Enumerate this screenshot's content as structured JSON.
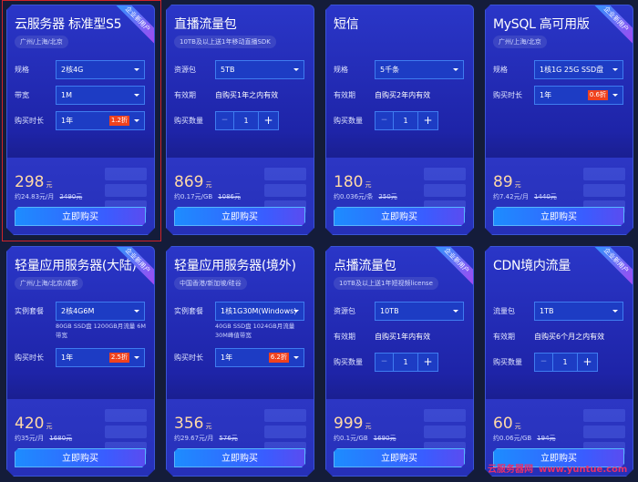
{
  "colors": {
    "accent": "#1d8cff",
    "badge": "#f0421e",
    "price": "#ffd9a8",
    "selection": "#d0242a"
  },
  "cards": [
    {
      "title": "云服务器 标准型S5",
      "tag": "广州/上海/北京",
      "ribbon": "企业新用户",
      "rows": [
        {
          "type": "select",
          "label": "规格",
          "value": "2核4G"
        },
        {
          "type": "select",
          "label": "带宽",
          "value": "1M"
        },
        {
          "type": "select",
          "label": "购买时长",
          "value": "1年",
          "badge": "1.2折"
        }
      ],
      "price": "298",
      "unit": "元",
      "per": "约24.83元/月",
      "original": "2490元",
      "button": "立即购买",
      "selected": true
    },
    {
      "title": "直播流量包",
      "tag": "10TB及以上送1年移动直播SDK",
      "rows": [
        {
          "type": "select",
          "label": "资源包",
          "value": "5TB"
        },
        {
          "type": "text",
          "label": "有效期",
          "value": "自购买1年之内有效"
        },
        {
          "type": "stepper",
          "label": "购买数量",
          "value": "1"
        }
      ],
      "price": "869",
      "unit": "元",
      "per": "约0.17元/GB",
      "original": "1086元",
      "button": "立即购买"
    },
    {
      "title": "短信",
      "rows": [
        {
          "type": "select",
          "label": "规格",
          "value": "5千条"
        },
        {
          "type": "text",
          "label": "有效期",
          "value": "自购买2年内有效"
        },
        {
          "type": "stepper",
          "label": "购买数量",
          "value": "1"
        }
      ],
      "price": "180",
      "unit": "元",
      "per": "约0.036元/条",
      "original": "250元",
      "button": "立即购买"
    },
    {
      "title": "MySQL 高可用版",
      "tag": "广州/上海/北京",
      "ribbon": "企业新用户",
      "rows": [
        {
          "type": "select",
          "label": "规格",
          "value": "1核1G 25G SSD盘"
        },
        {
          "type": "select",
          "label": "购买时长",
          "value": "1年",
          "badge": "0.6折"
        }
      ],
      "price": "89",
      "unit": "元",
      "per": "约7.42元/月",
      "original": "1440元",
      "button": "立即购买"
    },
    {
      "title": "轻量应用服务器(大陆)",
      "tag": "广州/上海/北京/成都",
      "ribbon": "企业新用户",
      "rows": [
        {
          "type": "select",
          "label": "实例套餐",
          "value": "2核4G6M",
          "desc": "80GB SSD盘 1200GB月流量 6M带宽"
        },
        {
          "type": "select",
          "label": "购买时长",
          "value": "1年",
          "badge": "2.5折"
        }
      ],
      "price": "420",
      "unit": "元",
      "per": "约35元/月",
      "original": "1680元",
      "button": "立即购买"
    },
    {
      "title": "轻量应用服务器(境外)",
      "tag": "中国香港/新加坡/硅谷",
      "rows": [
        {
          "type": "select",
          "label": "实例套餐",
          "value": "1核1G30M(Windows)",
          "desc": "40GB SSD盘 1024GB月流量 30M峰值带宽"
        },
        {
          "type": "select",
          "label": "购买时长",
          "value": "1年",
          "badge": "6.2折"
        }
      ],
      "price": "356",
      "unit": "元",
      "per": "约29.67元/月",
      "original": "576元",
      "button": "立即购买"
    },
    {
      "title": "点播流量包",
      "tag": "10TB及以上送1年短视频license",
      "ribbon": "企业新用户",
      "rows": [
        {
          "type": "select",
          "label": "资源包",
          "value": "10TB"
        },
        {
          "type": "text",
          "label": "有效期",
          "value": "自购买1年内有效"
        },
        {
          "type": "stepper",
          "label": "购买数量",
          "value": "1"
        }
      ],
      "price": "999",
      "unit": "元",
      "per": "约0.1元/GB",
      "original": "1690元",
      "button": "立即购买"
    },
    {
      "title": "CDN境内流量",
      "ribbon": "企业新用户",
      "rows": [
        {
          "type": "select",
          "label": "流量包",
          "value": "1TB"
        },
        {
          "type": "text",
          "label": "有效期",
          "value": "自购买6个月之内有效"
        },
        {
          "type": "stepper",
          "label": "购买数量",
          "value": "1"
        }
      ],
      "price": "60",
      "unit": "元",
      "per": "约0.06元/GB",
      "original": "194元",
      "button": "立即购买"
    }
  ],
  "watermark": {
    "name": "云服务器网",
    "url": "www.yuntue.com"
  }
}
